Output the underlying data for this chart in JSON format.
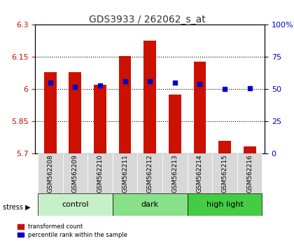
{
  "title": "GDS3933 / 262062_s_at",
  "samples": [
    "GSM562208",
    "GSM562209",
    "GSM562210",
    "GSM562211",
    "GSM562212",
    "GSM562213",
    "GSM562214",
    "GSM562215",
    "GSM562216"
  ],
  "red_values": [
    6.08,
    6.08,
    6.02,
    6.155,
    6.225,
    5.975,
    6.13,
    5.76,
    5.735
  ],
  "blue_values": [
    55,
    52,
    53,
    56,
    56,
    55,
    54,
    50,
    51
  ],
  "ylim_left": [
    5.7,
    6.3
  ],
  "ylim_right": [
    0,
    100
  ],
  "yticks_left": [
    5.7,
    5.85,
    6.0,
    6.15,
    6.3
  ],
  "yticks_right": [
    0,
    25,
    50,
    75,
    100
  ],
  "ytick_labels_left": [
    "5.7",
    "5.85",
    "6",
    "6.15",
    "6.3"
  ],
  "ytick_labels_right": [
    "0",
    "25",
    "50",
    "75",
    "100%"
  ],
  "grid_lines": [
    5.85,
    6.0,
    6.15
  ],
  "groups": [
    {
      "label": "control",
      "samples": [
        0,
        1,
        2
      ],
      "color": "#c8f0c8"
    },
    {
      "label": "dark",
      "samples": [
        3,
        4,
        5
      ],
      "color": "#88e088"
    },
    {
      "label": "high light",
      "samples": [
        6,
        7,
        8
      ],
      "color": "#44cc44"
    }
  ],
  "stress_label": "stress",
  "legend_red": "transformed count",
  "legend_blue": "percentile rank within the sample",
  "bar_color": "#cc1100",
  "blue_color": "#0000cc",
  "bar_bottom": 5.7,
  "title_color": "#333333",
  "left_tick_color": "#cc1100",
  "right_tick_color": "#0000cc",
  "bar_width": 0.5,
  "figsize": [
    4.2,
    3.54
  ],
  "dpi": 100
}
